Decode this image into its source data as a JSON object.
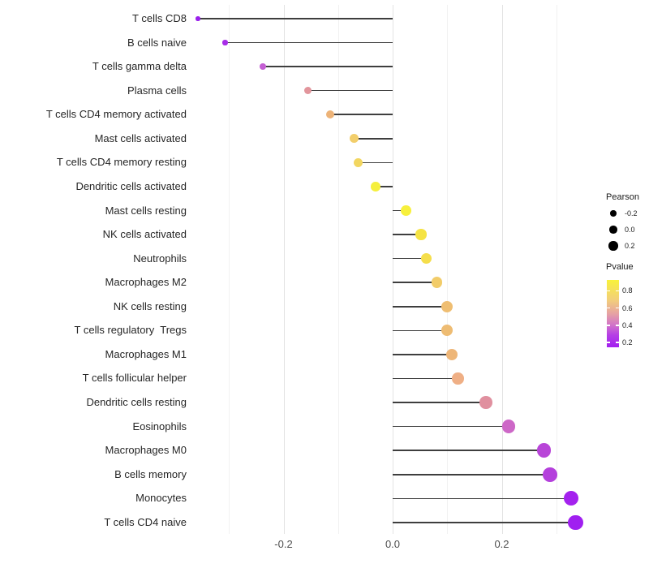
{
  "chart_data": {
    "type": "lollipop",
    "title": "",
    "xlabel": "",
    "ylabel": "",
    "x_ticks": [
      {
        "value": -0.2,
        "label": "-0.2"
      },
      {
        "value": 0.0,
        "label": "0.0"
      },
      {
        "value": 0.2,
        "label": "0.2"
      }
    ],
    "x_minor_gridlines": [
      -0.3,
      -0.1,
      0.1,
      0.3
    ],
    "xlim": [
      -0.392,
      0.369
    ],
    "grid": "vertical-only",
    "baseline_value": 0.0,
    "points": [
      {
        "label": "T cells CD8",
        "pearson": -0.357,
        "pvalue": 0.04,
        "color": "#9A20EC"
      },
      {
        "label": "B cells naive",
        "pearson": -0.307,
        "pvalue": 0.1,
        "color": "#A72CE8"
      },
      {
        "label": "T cells gamma delta",
        "pearson": -0.238,
        "pvalue": 0.27,
        "color": "#C45FD3"
      },
      {
        "label": "Plasma cells",
        "pearson": -0.155,
        "pvalue": 0.48,
        "color": "#E2959C"
      },
      {
        "label": "T cells CD4 memory activated",
        "pearson": -0.114,
        "pvalue": 0.6,
        "color": "#EDB378"
      },
      {
        "label": "Mast cells activated",
        "pearson": -0.07,
        "pvalue": 0.7,
        "color": "#F2CE6B"
      },
      {
        "label": "T cells CD4 memory resting",
        "pearson": -0.063,
        "pvalue": 0.73,
        "color": "#F2D660"
      },
      {
        "label": "Dendritic cells activated",
        "pearson": -0.031,
        "pvalue": 0.88,
        "color": "#F5EF3D"
      },
      {
        "label": "Mast cells resting",
        "pearson": 0.025,
        "pvalue": 0.9,
        "color": "#F7F03C"
      },
      {
        "label": "NK cells activated",
        "pearson": 0.052,
        "pvalue": 0.82,
        "color": "#F5E344"
      },
      {
        "label": "Neutrophils",
        "pearson": 0.062,
        "pvalue": 0.79,
        "color": "#F5DE4B"
      },
      {
        "label": "Macrophages M2",
        "pearson": 0.081,
        "pvalue": 0.7,
        "color": "#F2CC69"
      },
      {
        "label": "NK cells resting",
        "pearson": 0.099,
        "pvalue": 0.64,
        "color": "#EFBE72"
      },
      {
        "label": "T cells regulatory  Tregs",
        "pearson": 0.1,
        "pvalue": 0.64,
        "color": "#EEBC73"
      },
      {
        "label": "Macrophages M1",
        "pearson": 0.108,
        "pvalue": 0.61,
        "color": "#EEB678"
      },
      {
        "label": "T cells follicular helper",
        "pearson": 0.12,
        "pvalue": 0.57,
        "color": "#EFAF85"
      },
      {
        "label": "Dendritic cells resting",
        "pearson": 0.171,
        "pvalue": 0.46,
        "color": "#E0909F"
      },
      {
        "label": "Eosinophils",
        "pearson": 0.213,
        "pvalue": 0.3,
        "color": "#CD68C7"
      },
      {
        "label": "Macrophages M0",
        "pearson": 0.277,
        "pvalue": 0.16,
        "color": "#B845D8"
      },
      {
        "label": "B cells memory",
        "pearson": 0.288,
        "pvalue": 0.15,
        "color": "#B440DC"
      },
      {
        "label": "Monocytes",
        "pearson": 0.327,
        "pvalue": 0.06,
        "color": "#A422EE"
      },
      {
        "label": "T cells CD4 naive",
        "pearson": 0.335,
        "pvalue": 0.04,
        "color": "#A01FF0"
      }
    ],
    "legend": {
      "size": {
        "title": "Pearson",
        "items": [
          {
            "label": "-0.2",
            "value": -0.2
          },
          {
            "label": "0.0",
            "value": 0.0
          },
          {
            "label": "0.2",
            "value": 0.2
          }
        ]
      },
      "color": {
        "title": "Pvalue",
        "tick_values": [
          0.8,
          0.6,
          0.4,
          0.2
        ],
        "bar_range": [
          0.145,
          0.925
        ],
        "low_color": "#A020F0",
        "high_color": "#FFFF00",
        "gradient_stops": [
          {
            "color": "#F8F23B",
            "pos": 0
          },
          {
            "color": "#F2CE7B",
            "pos": 30
          },
          {
            "color": "#E6A2A3",
            "pos": 50
          },
          {
            "color": "#D173C9",
            "pos": 67
          },
          {
            "color": "#B53EE6",
            "pos": 82
          },
          {
            "color": "#A21FF0",
            "pos": 100
          }
        ],
        "legend_position": "right"
      }
    }
  }
}
